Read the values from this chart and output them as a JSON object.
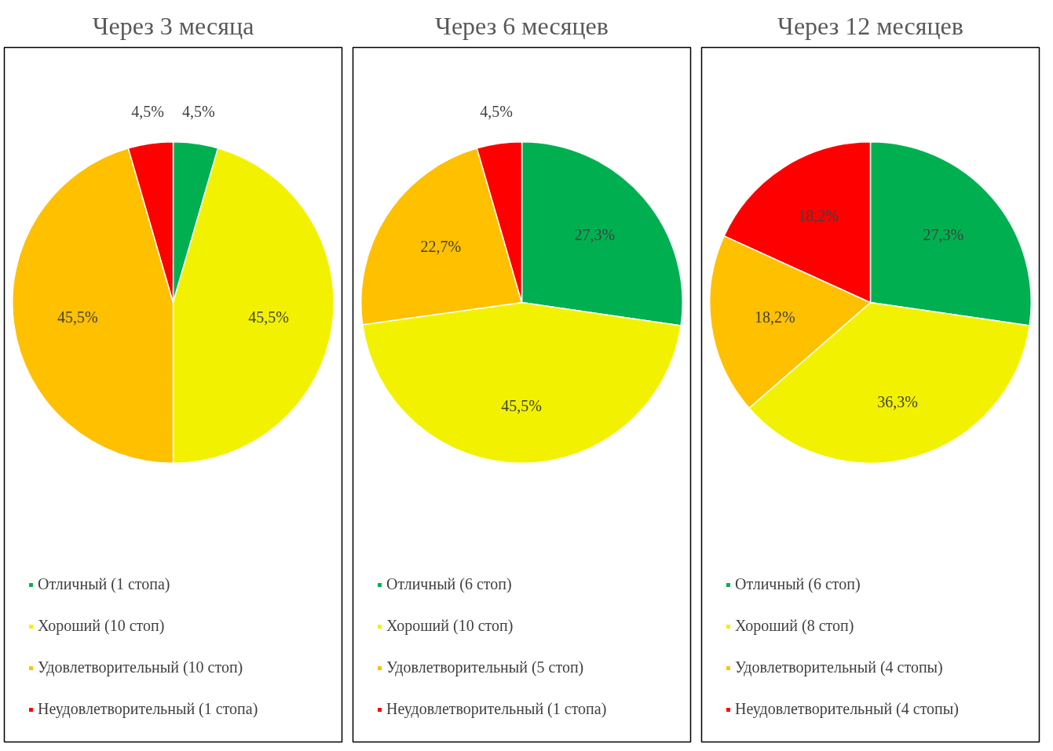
{
  "chart_data": [
    {
      "type": "pie",
      "title": "Через 3 месяца",
      "categories": [
        "Отличный (1 стопа)",
        "Хороший (10 стоп)",
        "Удовлетворительный (10 стоп)",
        "Неудовлетворительный (1 стопа)"
      ],
      "values": [
        4.5,
        45.5,
        45.5,
        4.5
      ],
      "colors": [
        "#00b050",
        "#f2f200",
        "#ffc000",
        "#ff0000"
      ],
      "value_labels": [
        "4,5%",
        "45,5%",
        "45,5%",
        "4,5%"
      ],
      "legend": "bottom"
    },
    {
      "type": "pie",
      "title": "Через 6 месяцев",
      "categories": [
        "Отличный (6 стоп)",
        "Хороший (10 стоп)",
        "Удовлетворительный (5 стоп)",
        "Неудовлетворительный (1 стопа)"
      ],
      "values": [
        27.3,
        45.5,
        22.7,
        4.5
      ],
      "colors": [
        "#00b050",
        "#f2f200",
        "#ffc000",
        "#ff0000"
      ],
      "value_labels": [
        "27,3%",
        "45,5%",
        "22,7%",
        "4,5%"
      ],
      "legend": "bottom"
    },
    {
      "type": "pie",
      "title": "Через 12 месяцев",
      "categories": [
        "Отличный (6 стоп)",
        "Хороший (8 стоп)",
        "Удовлетворительный (4 стопы)",
        "Неудовлетворительный (4 стопы)"
      ],
      "values": [
        27.3,
        36.3,
        18.2,
        18.2
      ],
      "colors": [
        "#00b050",
        "#f2f200",
        "#ffc000",
        "#ff0000"
      ],
      "value_labels": [
        "27,3%",
        "36,3%",
        "18,2%",
        "18,2%"
      ],
      "legend": "bottom"
    }
  ]
}
